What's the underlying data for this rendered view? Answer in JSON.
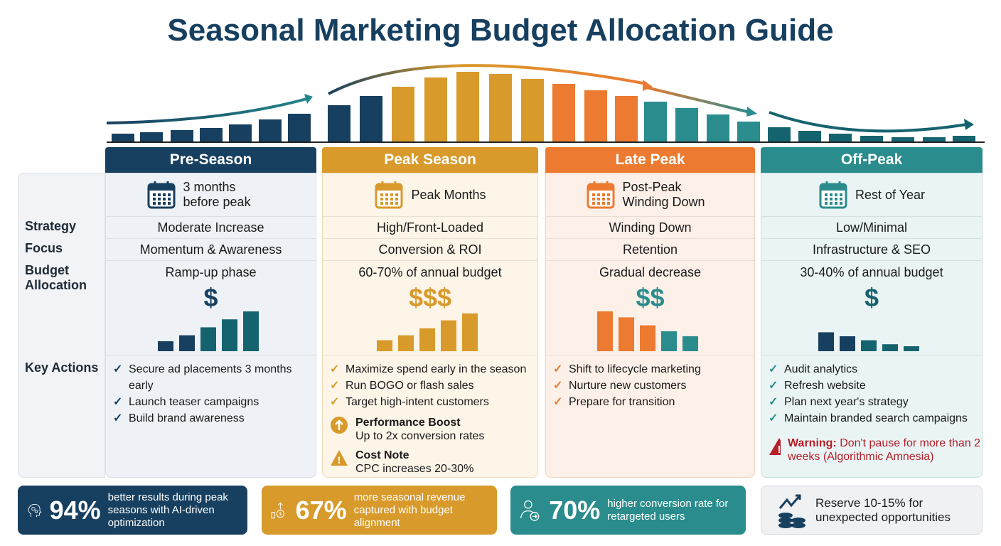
{
  "title": "Seasonal Marketing Budget Allocation Guide",
  "colors": {
    "pre": "#173f5f",
    "peak": "#d89a2b",
    "late": "#ec7a30",
    "off": "#2a8c8c",
    "offdark": "#15636e",
    "warning": "#b5202a"
  },
  "trend_bars": {
    "pre": [
      12,
      14,
      17,
      20,
      25,
      32,
      40
    ],
    "peak": [
      52,
      65,
      78,
      91,
      99,
      96,
      89
    ],
    "late": [
      82,
      73,
      65
    ],
    "off": [
      57,
      48,
      39,
      29
    ],
    "rest": [
      21,
      16,
      12,
      9,
      7,
      7,
      9
    ]
  },
  "row_labels": {
    "strategy": "Strategy",
    "focus": "Focus",
    "budget": "Budget Allocation",
    "actions": "Key Actions"
  },
  "columns": [
    {
      "name": "Pre-Season",
      "when": "3 months before peak",
      "strategy": "Moderate Increase",
      "focus": "Momentum & Awareness",
      "budget": "Ramp-up phase",
      "symbol": "$",
      "actions": [
        "Secure ad placements 3 months early",
        "Launch teaser campaigns",
        "Build brand awareness"
      ]
    },
    {
      "name": "Peak Season",
      "when": "Peak Months",
      "strategy": "High/Front-Loaded",
      "focus": "Conversion & ROI",
      "budget": "60-70% of annual budget",
      "symbol": "$$$",
      "actions": [
        "Maximize spend early in the season",
        "Run BOGO or flash sales",
        "Target high-intent customers"
      ],
      "notes": [
        {
          "title": "Performance Boost",
          "text": "Up to 2x conversion rates",
          "icon": "arrow-up-circle"
        },
        {
          "title": "Cost Note",
          "text": "CPC increases 20-30%",
          "icon": "warning-triangle"
        }
      ]
    },
    {
      "name": "Late Peak",
      "when": "Post-Peak Winding Down",
      "strategy": "Winding Down",
      "focus": "Retention",
      "budget": "Gradual decrease",
      "symbol": "$$",
      "actions": [
        "Shift to lifecycle marketing",
        "Nurture new customers",
        "Prepare for transition"
      ]
    },
    {
      "name": "Off-Peak",
      "when": "Rest of Year",
      "strategy": "Low/Minimal",
      "focus": "Infrastructure & SEO",
      "budget": "30-40% of annual budget",
      "symbol": "$",
      "actions": [
        "Audit analytics",
        "Refresh website",
        "Plan next year's strategy",
        "Maintain branded search campaigns"
      ],
      "warning": {
        "label": "Warning:",
        "text": "Don't pause for more than 2 weeks (Algorithmic Amnesia)"
      }
    }
  ],
  "stats": [
    {
      "value": "94%",
      "text": "better results during peak seasons with AI-driven optimization",
      "icon": "brain-gear"
    },
    {
      "value": "67%",
      "text": "more seasonal revenue captured with budget alignment",
      "icon": "money-growth"
    },
    {
      "value": "70%",
      "text": "higher conversion rate for retargeted users",
      "icon": "user-arrow"
    },
    {
      "value": "",
      "text": "Reserve 10-15% for unexpected opportunities",
      "icon": "coins-trend"
    }
  ]
}
